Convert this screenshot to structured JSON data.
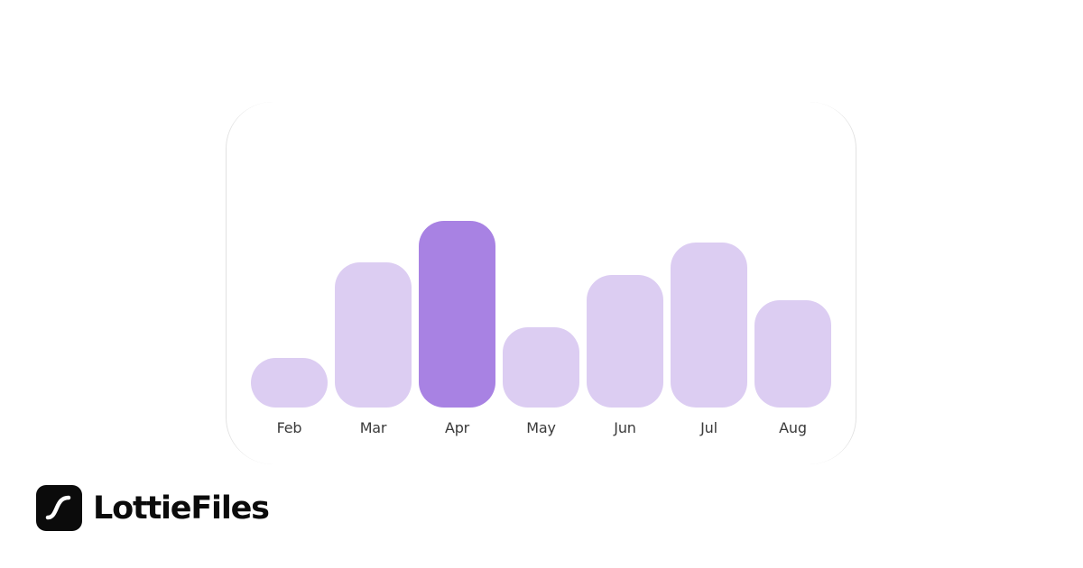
{
  "brand": {
    "name": "LottieFiles",
    "icon": "lottie-s-curve-icon"
  },
  "colors": {
    "bar_default": "#dccdf2",
    "bar_highlight": "#a882e3",
    "label": "#3a3a3a",
    "logo": "#0b0b0b"
  },
  "chart_data": {
    "type": "bar",
    "title": "",
    "xlabel": "",
    "ylabel": "",
    "categories": [
      "Feb",
      "Mar",
      "Apr",
      "May",
      "Jun",
      "Jul",
      "Aug"
    ],
    "values": [
      55,
      161,
      207,
      89,
      147,
      183,
      119
    ],
    "highlighted": "Apr",
    "grid": false,
    "legend": null,
    "note": "No axis ticks shown; values are relative bar heights in pixels"
  },
  "labels": [
    "Feb",
    "Mar",
    "Apr",
    "May",
    "Jun",
    "Jul",
    "Aug"
  ]
}
